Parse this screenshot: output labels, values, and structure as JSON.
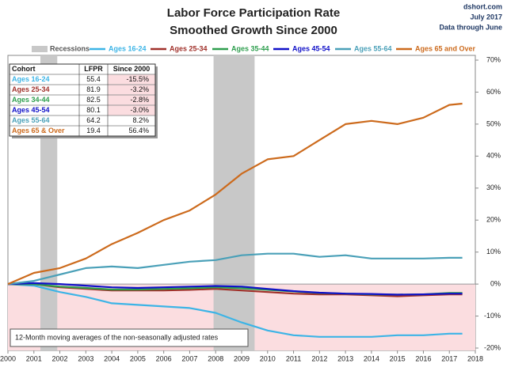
{
  "chart_data": {
    "type": "line",
    "title": "Labor Force Participation Rate",
    "subtitle": "Smoothed Growth Since 2000",
    "source": "dshort.com",
    "date": "July 2017",
    "data_note": "Data through June",
    "note": "12-Month moving averages of the non-seasonally adjusted rates",
    "recessions": {
      "name": "Recessions",
      "color": "#c8c8c8",
      "periods": [
        [
          2001.25,
          2001.9
        ],
        [
          2007.92,
          2009.5
        ]
      ]
    },
    "x": [
      2000,
      2001,
      2002,
      2003,
      2004,
      2005,
      2006,
      2007,
      2008,
      2009,
      2010,
      2011,
      2012,
      2013,
      2014,
      2015,
      2016,
      2017,
      2017.5
    ],
    "series": [
      {
        "name": "Ages 16-24",
        "color": "#3cb4e6",
        "values": [
          0,
          -0.5,
          -2.5,
          -4,
          -6,
          -6.5,
          -7,
          -7.5,
          -9,
          -12,
          -14.5,
          -16,
          -16.5,
          -16.5,
          -16.5,
          -16,
          -16,
          -15.5,
          -15.5
        ]
      },
      {
        "name": "Ages 25-34",
        "color": "#a0302a",
        "values": [
          0,
          0,
          -1,
          -1.5,
          -2,
          -2,
          -2,
          -1.8,
          -1.5,
          -2,
          -2.5,
          -3,
          -3.2,
          -3.2,
          -3.5,
          -3.8,
          -3.5,
          -3.2,
          -3.2
        ]
      },
      {
        "name": "Ages 35-44",
        "color": "#2e9e4e",
        "values": [
          0,
          0,
          -0.8,
          -1.2,
          -1.7,
          -1.7,
          -1.5,
          -1.3,
          -1,
          -1.3,
          -1.8,
          -2.3,
          -2.8,
          -3,
          -3.2,
          -3.3,
          -3.2,
          -2.8,
          -2.8
        ]
      },
      {
        "name": "Ages 45-54",
        "color": "#1010c8",
        "values": [
          0,
          0.3,
          0,
          -0.5,
          -1,
          -1.2,
          -1,
          -0.8,
          -0.6,
          -0.8,
          -1.5,
          -2.2,
          -2.7,
          -3,
          -3.1,
          -3.3,
          -3.2,
          -3,
          -3
        ]
      },
      {
        "name": "Ages 55-64",
        "color": "#4aa0b8",
        "values": [
          0,
          1,
          3,
          5,
          5.5,
          5,
          6,
          7,
          7.5,
          9,
          9.5,
          9.5,
          8.5,
          9,
          8,
          8,
          8,
          8.2,
          8.2
        ]
      },
      {
        "name": "Ages 65 and Over",
        "color": "#cc6a1c",
        "values": [
          0,
          3.5,
          5,
          8,
          12.5,
          16,
          20,
          23,
          28,
          34.5,
          39,
          40,
          45,
          50,
          51,
          50,
          52,
          56,
          56.4
        ]
      }
    ],
    "xlim": [
      2000,
      2018
    ],
    "xticks": [
      2000,
      2001,
      2002,
      2003,
      2004,
      2005,
      2006,
      2007,
      2008,
      2009,
      2010,
      2011,
      2012,
      2013,
      2014,
      2015,
      2016,
      2017,
      2018
    ],
    "ylim": [
      -20,
      70
    ],
    "yticks": [
      {
        "value": -20,
        "label": "-20%"
      },
      {
        "value": -10,
        "label": "-10%"
      },
      {
        "value": 0,
        "label": "0%"
      },
      {
        "value": 10,
        "label": "10%"
      },
      {
        "value": 20,
        "label": "20%"
      },
      {
        "value": 30,
        "label": "30%"
      },
      {
        "value": 40,
        "label": "40%"
      },
      {
        "value": 50,
        "label": "50%"
      },
      {
        "value": 60,
        "label": "60%"
      },
      {
        "value": 70,
        "label": "70%"
      }
    ],
    "negative_fill": "#fbdde0",
    "grid": false,
    "table": {
      "columns": [
        "Cohort",
        "LFPR",
        "Since 2000"
      ],
      "rows": [
        [
          "Ages 16-24",
          "55.4",
          "-15.5%"
        ],
        [
          "Ages 25-34",
          "81.9",
          "-3.2%"
        ],
        [
          "Ages 34-44",
          "82.5",
          "-2.8%"
        ],
        [
          "Ages 45-54",
          "80.1",
          "-3.0%"
        ],
        [
          "Ages 55-64",
          "64.2",
          "8.2%"
        ],
        [
          "Ages 65 & Over",
          "19.4",
          "56.4%"
        ]
      ]
    }
  }
}
